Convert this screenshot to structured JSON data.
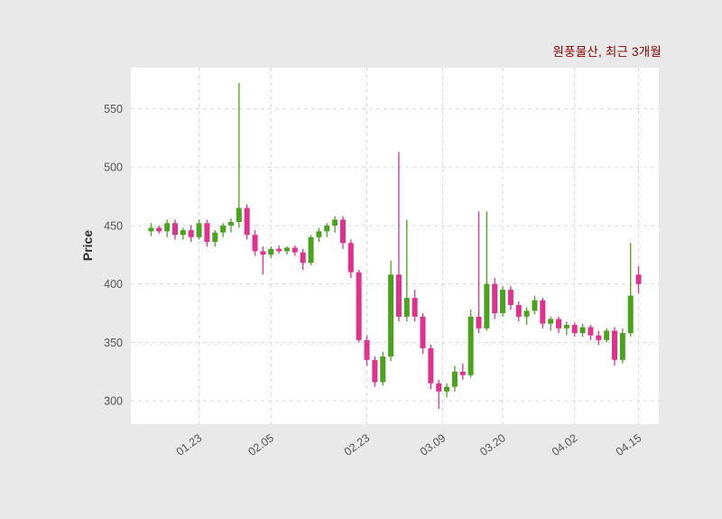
{
  "figure": {
    "background": "#e9e9e9",
    "plot_background": "#ffffff",
    "grid_color": "#d9d9d9",
    "tick_color": "#555555",
    "title_color": "#8b0000"
  },
  "chart_data": {
    "type": "candlestick",
    "title": "원풍물산, 최근 3개월",
    "ylabel": "Price",
    "xlabel": "",
    "ylim": [
      280,
      585
    ],
    "yticks": [
      300,
      350,
      400,
      450,
      500,
      550
    ],
    "xticks": [
      {
        "label": "01.23",
        "index": 6
      },
      {
        "label": "02.05",
        "index": 15
      },
      {
        "label": "02.23",
        "index": 27
      },
      {
        "label": "03.09",
        "index": 36.5
      },
      {
        "label": "03.20",
        "index": 44
      },
      {
        "label": "04.02",
        "index": 53
      },
      {
        "label": "04.15",
        "index": 61
      }
    ],
    "grid": true,
    "legend": "none",
    "up_color": "#4aa31c",
    "down_color": "#e2308e",
    "columns": [
      "date",
      "open",
      "high",
      "low",
      "close"
    ],
    "candles": [
      [
        "01.15",
        445,
        452,
        441,
        448
      ],
      [
        "01.16",
        448,
        450,
        443,
        445
      ],
      [
        "01.17",
        445,
        455,
        440,
        452
      ],
      [
        "01.18",
        452,
        455,
        438,
        442
      ],
      [
        "01.19",
        442,
        448,
        438,
        446
      ],
      [
        "01.22",
        446,
        450,
        436,
        440
      ],
      [
        "01.23",
        440,
        455,
        438,
        452
      ],
      [
        "01.24",
        452,
        455,
        432,
        436
      ],
      [
        "01.25",
        436,
        446,
        432,
        444
      ],
      [
        "01.26",
        444,
        452,
        440,
        450
      ],
      [
        "01.29",
        450,
        456,
        444,
        453
      ],
      [
        "01.30",
        453,
        572,
        448,
        465
      ],
      [
        "01.31",
        465,
        468,
        438,
        442
      ],
      [
        "02.01",
        442,
        446,
        424,
        428
      ],
      [
        "02.02",
        428,
        432,
        408,
        425
      ],
      [
        "02.05",
        425,
        432,
        422,
        430
      ],
      [
        "02.06",
        430,
        433,
        426,
        428
      ],
      [
        "02.07",
        428,
        432,
        425,
        431
      ],
      [
        "02.08",
        431,
        433,
        424,
        427
      ],
      [
        "02.13",
        427,
        430,
        412,
        418
      ],
      [
        "02.14",
        418,
        442,
        416,
        440
      ],
      [
        "02.15",
        440,
        448,
        436,
        445
      ],
      [
        "02.16",
        445,
        452,
        440,
        450
      ],
      [
        "02.19",
        450,
        458,
        444,
        455
      ],
      [
        "02.20",
        455,
        458,
        430,
        435
      ],
      [
        "02.21",
        435,
        438,
        405,
        410
      ],
      [
        "02.22",
        410,
        412,
        350,
        352
      ],
      [
        "02.23",
        352,
        356,
        330,
        335
      ],
      [
        "02.26",
        335,
        338,
        312,
        316
      ],
      [
        "02.27",
        316,
        342,
        313,
        338
      ],
      [
        "02.28",
        338,
        420,
        334,
        408
      ],
      [
        "02.29",
        408,
        513,
        368,
        372
      ],
      [
        "03.04",
        372,
        455,
        368,
        388
      ],
      [
        "03.05",
        388,
        395,
        368,
        372
      ],
      [
        "03.06",
        372,
        375,
        340,
        345
      ],
      [
        "03.07",
        345,
        348,
        310,
        315
      ],
      [
        "03.08",
        315,
        318,
        293,
        308
      ],
      [
        "03.11",
        308,
        315,
        303,
        312
      ],
      [
        "03.12",
        312,
        330,
        308,
        325
      ],
      [
        "03.13",
        325,
        332,
        318,
        322
      ],
      [
        "03.14",
        322,
        378,
        320,
        372
      ],
      [
        "03.15",
        372,
        462,
        358,
        362
      ],
      [
        "03.18",
        362,
        462,
        360,
        400
      ],
      [
        "03.19",
        400,
        405,
        370,
        375
      ],
      [
        "03.20",
        375,
        398,
        372,
        395
      ],
      [
        "03.21",
        395,
        398,
        378,
        382
      ],
      [
        "03.22",
        382,
        385,
        368,
        372
      ],
      [
        "03.25",
        372,
        380,
        365,
        377
      ],
      [
        "03.26",
        377,
        390,
        374,
        386
      ],
      [
        "03.27",
        386,
        388,
        362,
        366
      ],
      [
        "03.28",
        366,
        372,
        360,
        370
      ],
      [
        "03.29",
        370,
        372,
        358,
        362
      ],
      [
        "04.01",
        362,
        368,
        356,
        365
      ],
      [
        "04.02",
        365,
        367,
        355,
        358
      ],
      [
        "04.03",
        358,
        366,
        355,
        363
      ],
      [
        "04.04",
        363,
        365,
        352,
        356
      ],
      [
        "04.05",
        356,
        360,
        348,
        352
      ],
      [
        "04.08",
        352,
        362,
        350,
        360
      ],
      [
        "04.09",
        360,
        363,
        330,
        335
      ],
      [
        "04.11",
        335,
        362,
        332,
        358
      ],
      [
        "04.12",
        358,
        435,
        355,
        390
      ],
      [
        "04.15",
        408,
        415,
        392,
        400
      ]
    ]
  }
}
